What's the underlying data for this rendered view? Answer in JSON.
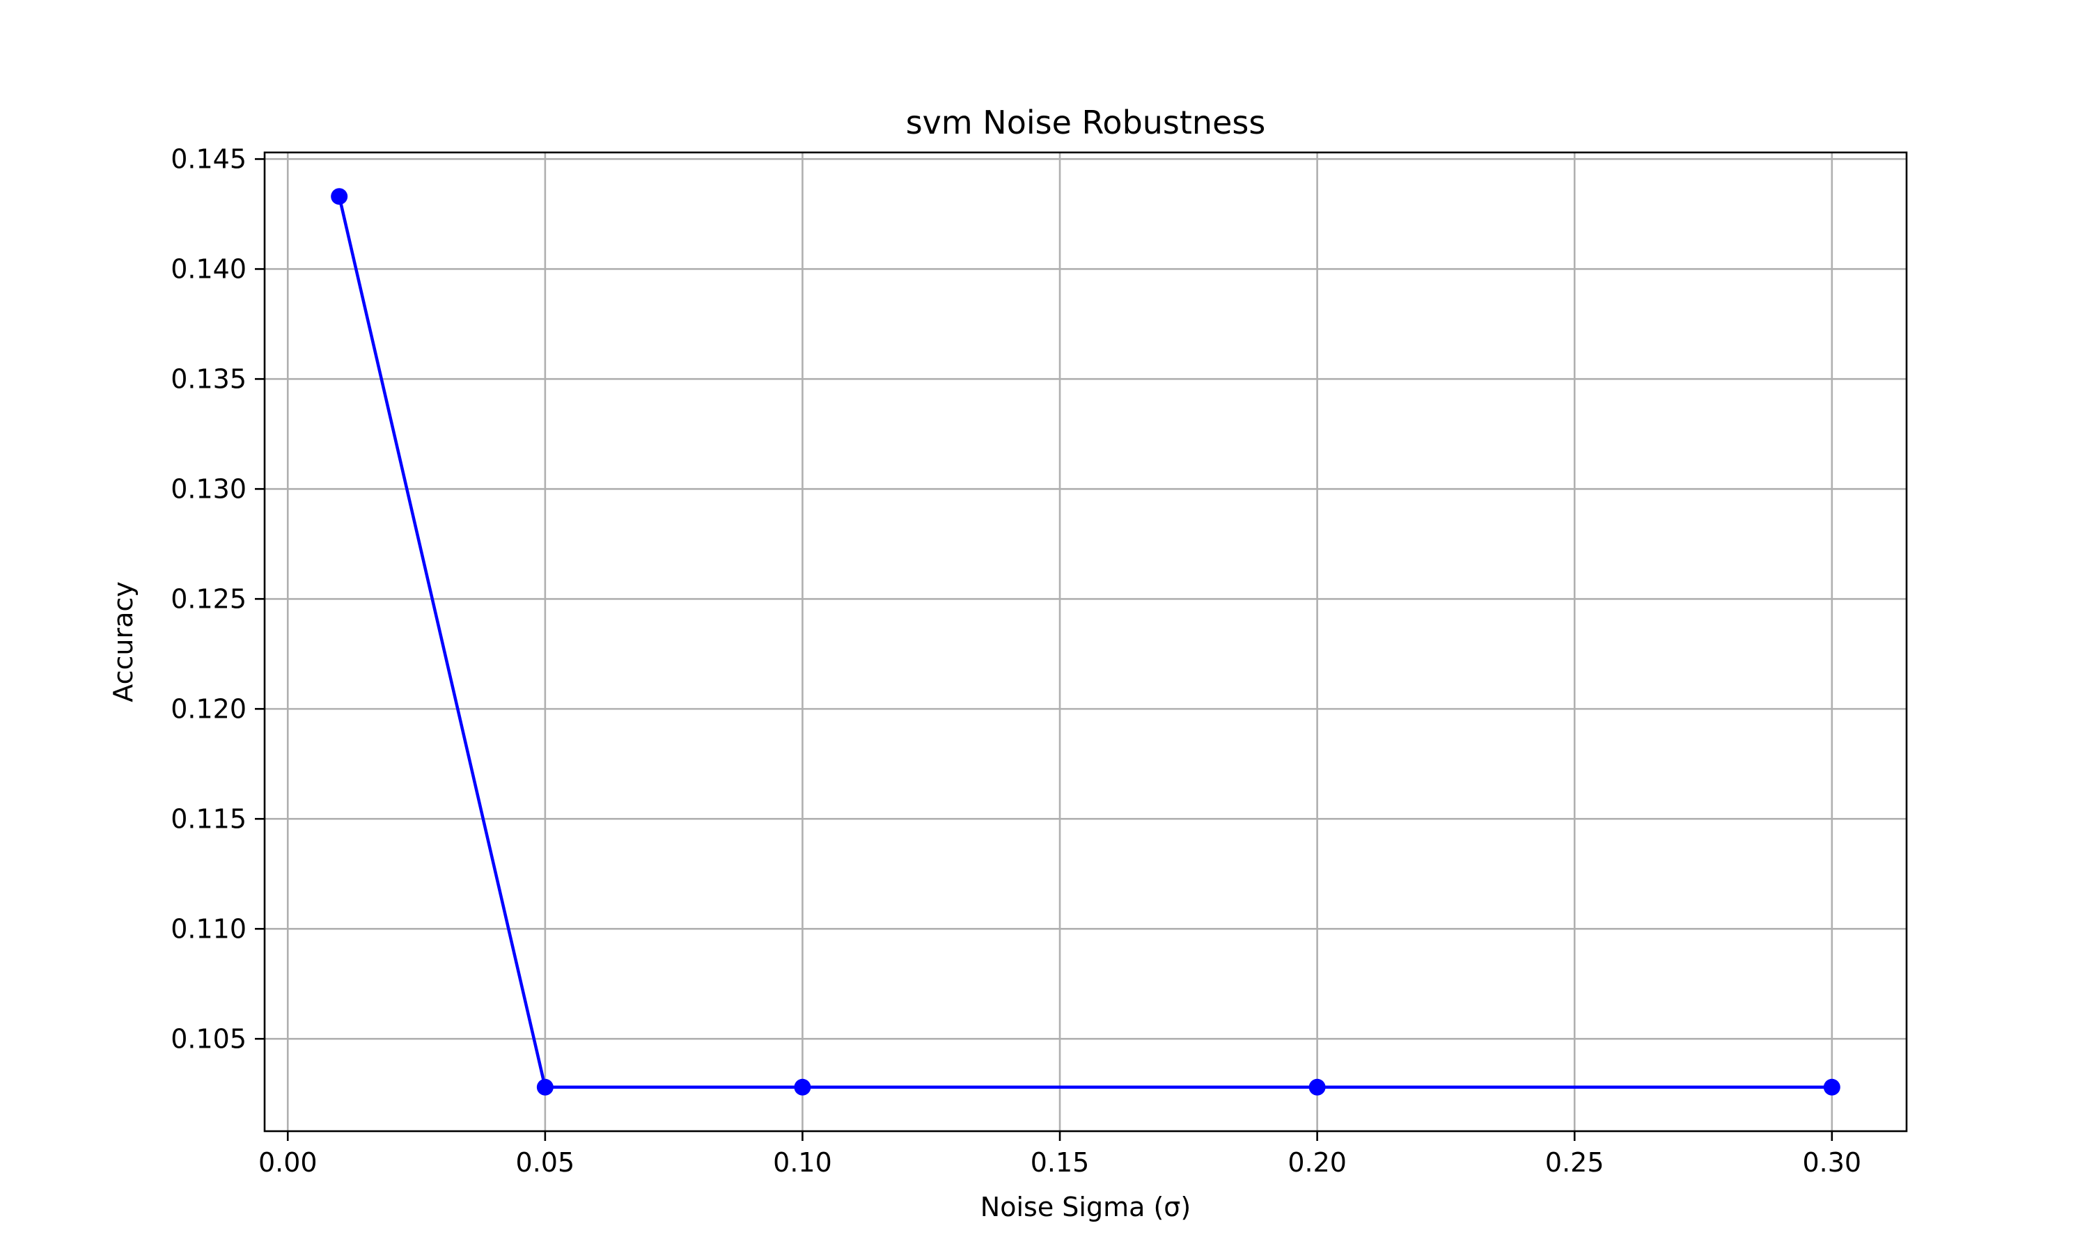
{
  "chart_data": {
    "type": "line",
    "title": "svm Noise Robustness",
    "xlabel": "Noise Sigma (σ)",
    "ylabel": "Accuracy",
    "xlim": [
      -0.0045,
      0.3145
    ],
    "ylim": [
      0.1008,
      0.1453
    ],
    "grid": true,
    "x_ticks": [
      0.0,
      0.05,
      0.1,
      0.15,
      0.2,
      0.25,
      0.3
    ],
    "x_tick_labels": [
      "0.00",
      "0.05",
      "0.10",
      "0.15",
      "0.20",
      "0.25",
      "0.30"
    ],
    "y_ticks": [
      0.105,
      0.11,
      0.115,
      0.12,
      0.125,
      0.13,
      0.135,
      0.14,
      0.145
    ],
    "y_tick_labels": [
      "0.105",
      "0.110",
      "0.115",
      "0.120",
      "0.125",
      "0.130",
      "0.135",
      "0.140",
      "0.145"
    ],
    "series": [
      {
        "color": "#0000ff",
        "marker": "circle",
        "x": [
          0.01,
          0.05,
          0.1,
          0.2,
          0.3
        ],
        "y": [
          0.1433,
          0.1028,
          0.1028,
          0.1028,
          0.1028
        ]
      }
    ]
  }
}
